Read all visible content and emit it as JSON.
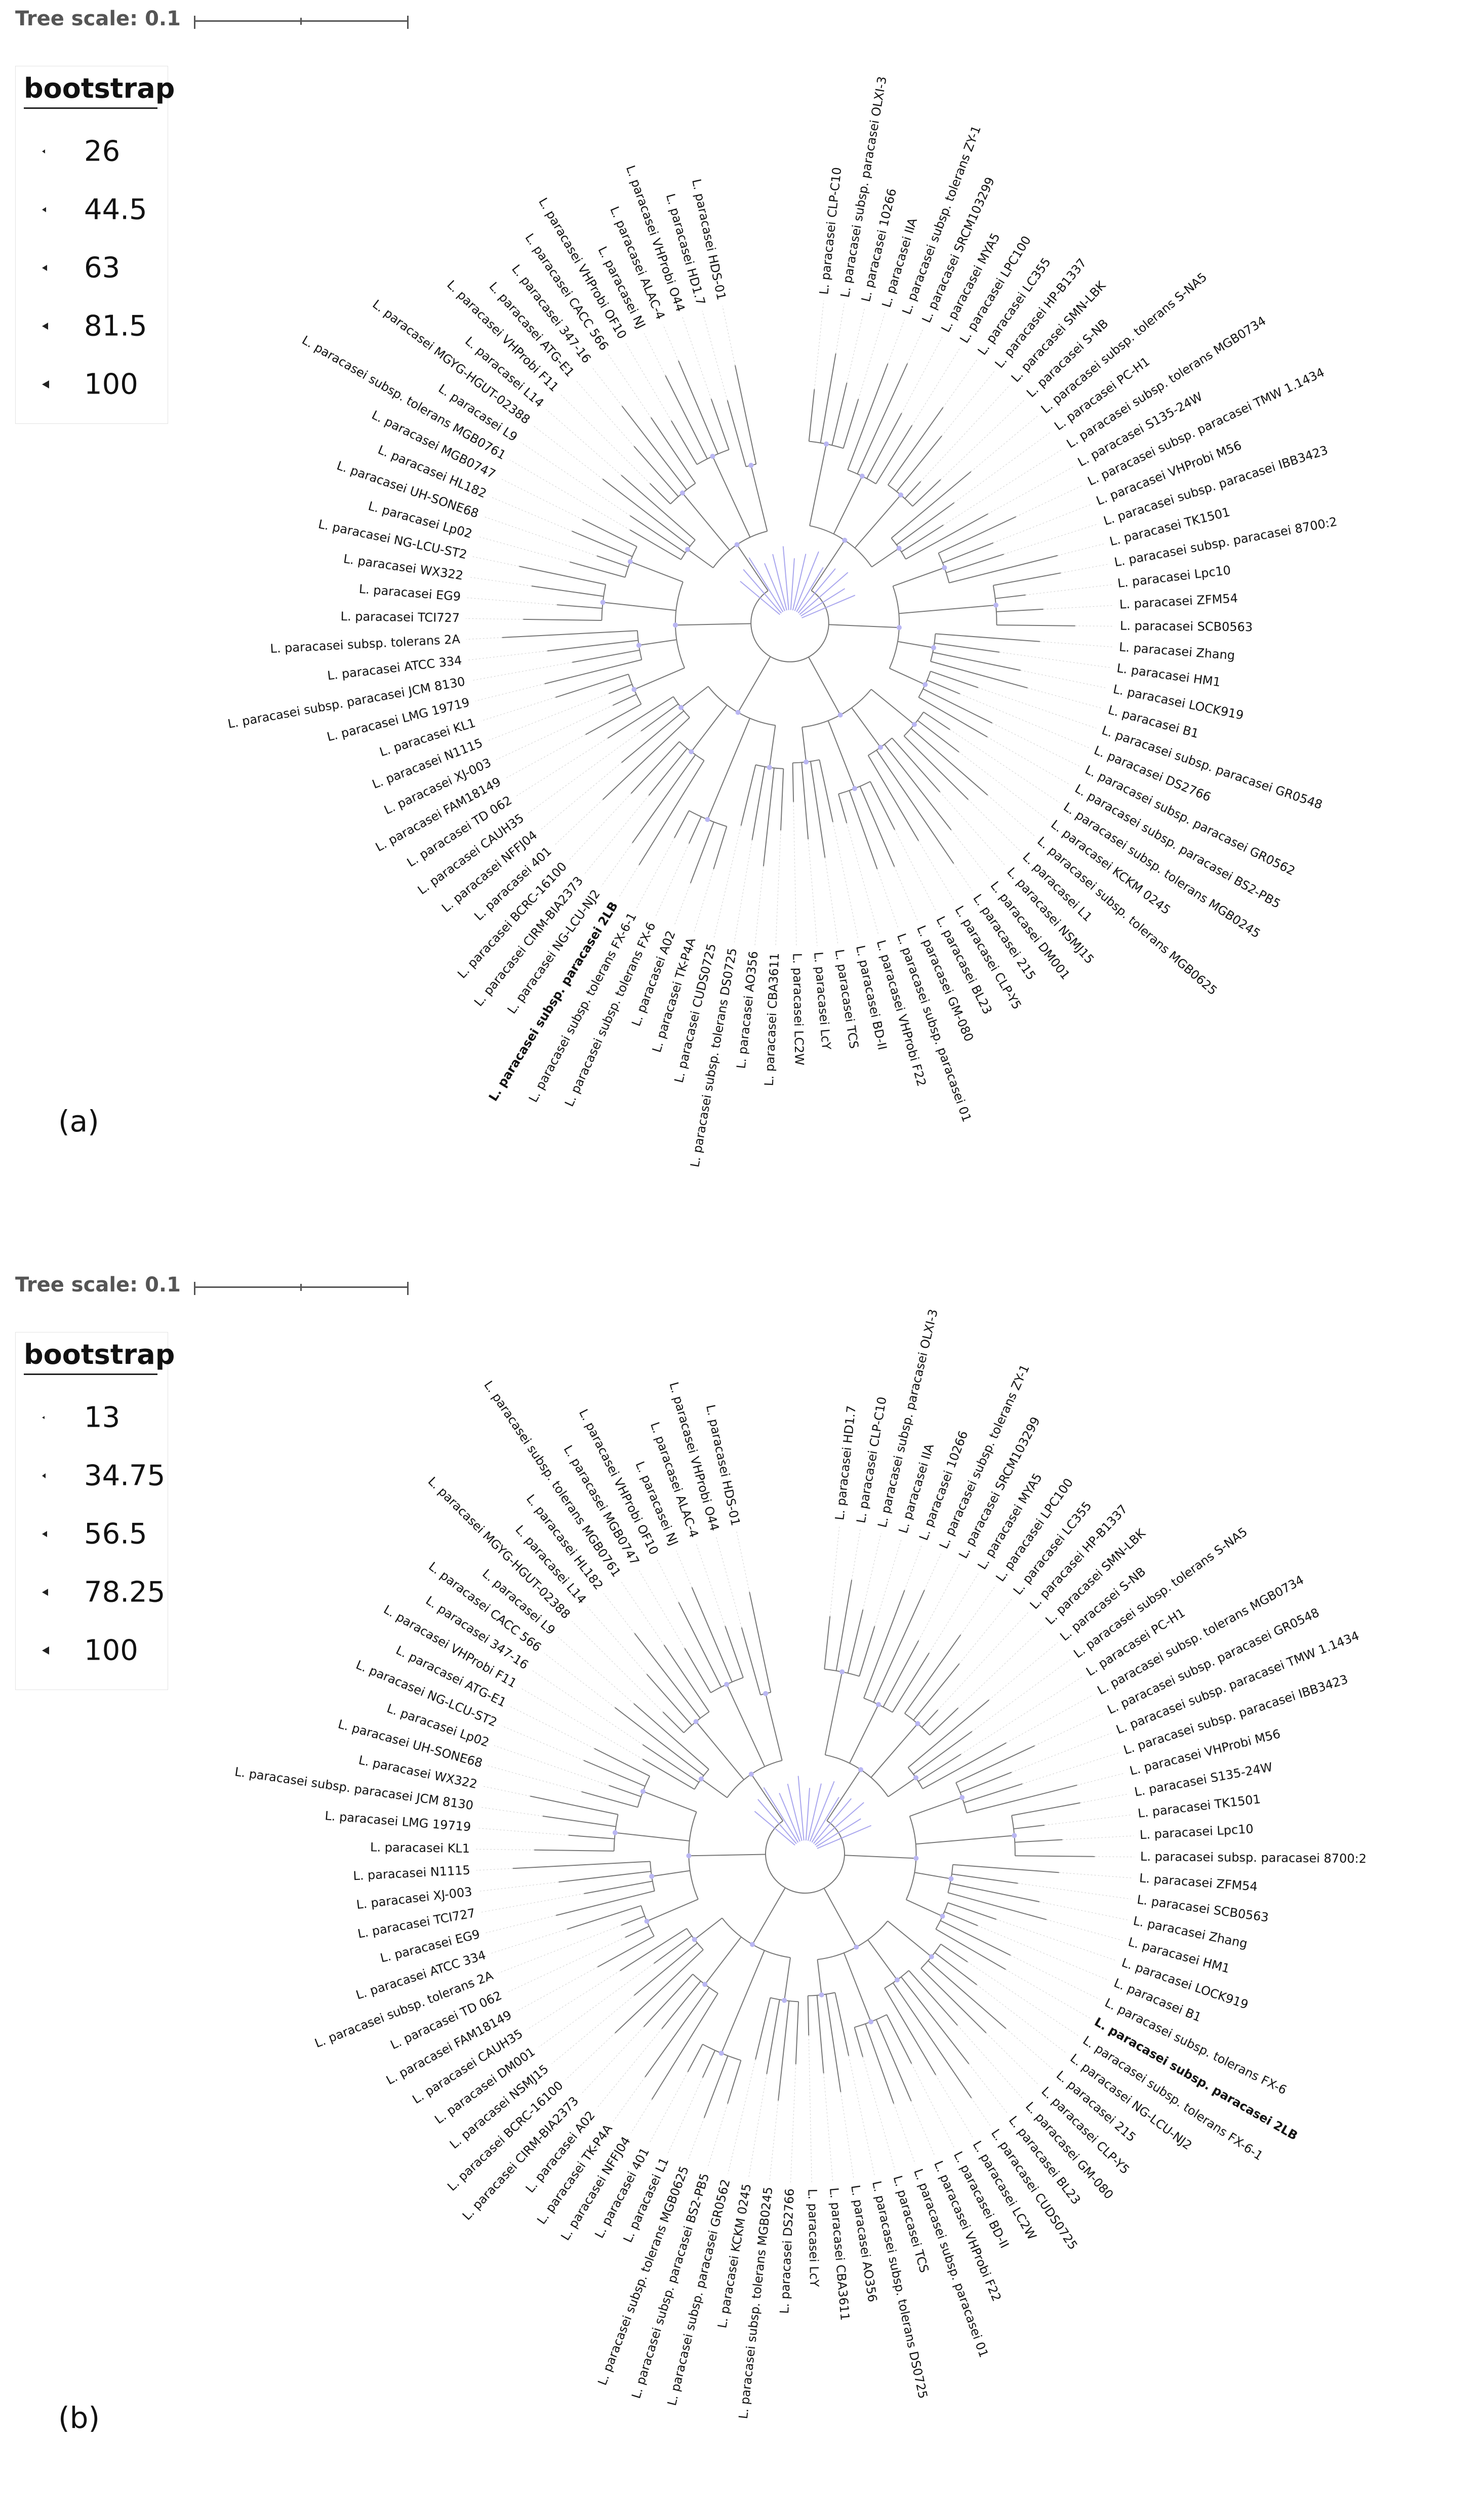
{
  "panels": [
    {
      "id": "a",
      "label": "(a)",
      "scale_label": "Tree scale: 0.1",
      "legend_title": "bootstrap",
      "legend_values": [
        "26",
        "44.5",
        "63",
        "81.5",
        "100"
      ],
      "highlight": "L. paracasei subsp. paracasei 2LB",
      "taxa": [
        "L. paracasei CLP-C10",
        "L. paracasei subsp. paracasei OLXI-3",
        "L. paracasei 10266",
        "L. paracasei IIA",
        "L. paracasei subsp. tolerans ZY-1",
        "L. paracasei SRCM103299",
        "L. paracasei MYA5",
        "L. paracasei LPC100",
        "L. paracasei LC355",
        "L. paracasei HP-B1337",
        "L. paracasei SMN-LBK",
        "L. paracasei S-NB",
        "L. paracasei subsp. tolerans S-NA5",
        "L. paracasei PC-H1",
        "L. paracasei subsp. tolerans MGB0734",
        "L. paracasei S135-24W",
        "L. paracasei subsp. paracasei TMW 1.1434",
        "L. paracasei VHProbi M56",
        "L. paracasei subsp. paracasei IBB3423",
        "L. paracasei TK1501",
        "L. paracasei subsp. paracasei 8700:2",
        "L. paracasei Lpc10",
        "L. paracasei ZFM54",
        "L. paracasei SCB0563",
        "L. paracasei Zhang",
        "L. paracasei HM1",
        "L. paracasei LOCK919",
        "L. paracasei B1",
        "L. paracasei subsp. paracasei GR0548",
        "L. paracasei DS2766",
        "L. paracasei subsp. paracasei GR0562",
        "L. paracasei subsp. paracasei BS2-PB5",
        "L. paracasei subsp. tolerans MGB0245",
        "L. paracasei KCKM 0245",
        "L. paracasei subsp. tolerans MGB0625",
        "L. paracasei L1",
        "L. paracasei NSMJ15",
        "L. paracasei DM001",
        "L. paracasei 215",
        "L. paracasei CLP-Y5",
        "L. paracasei BL23",
        "L. paracasei GM-080",
        "L. paracasei subsp. paracasei 01",
        "L. paracasei VHProbi F22",
        "L. paracasei BD-II",
        "L. paracasei TCS",
        "L. paracasei LcY",
        "L. paracasei LC2W",
        "L. paracasei CBA3611",
        "L. paracasei AO356",
        "L. paracasei subsp. tolerans DS0725",
        "L. paracasei CUDS0725",
        "L. paracasei TK-P4A",
        "L. paracasei A02",
        "L. paracasei subsp. tolerans FX-6",
        "L. paracasei subsp. tolerans FX-6-1",
        "L. paracasei subsp. paracasei 2LB",
        "L. paracasei NG-LCU-NJ2",
        "L. paracasei CIRM-BIA2373",
        "L. paracasei BCRC-16100",
        "L. paracasei 401",
        "L. paracasei NFFJ04",
        "L. paracasei CAUH35",
        "L. paracasei TD 062",
        "L. paracasei FAM18149",
        "L. paracasei XJ-003",
        "L. paracasei N1115",
        "L. paracasei KL1",
        "L. paracasei LMG 19719",
        "L. paracasei subsp. paracasei JCM 8130",
        "L. paracasei ATCC 334",
        "L. paracasei subsp. tolerans 2A",
        "L. paracasei TCI727",
        "L. paracasei EG9",
        "L. paracasei WX322",
        "L. paracasei NG-LCU-ST2",
        "L. paracasei Lp02",
        "L. paracasei UH-SONE68",
        "L. paracasei HL182",
        "L. paracasei MGB0747",
        "L. paracasei subsp. tolerans MGB0761",
        "L. paracasei L9",
        "L. paracasei MGYG-HGUT-02388",
        "L. paracasei L14",
        "L. paracasei VHProbi F11",
        "L. paracasei ATG-E1",
        "L. paracasei 347-16",
        "L. paracasei CACC 566",
        "L. paracasei VHProbi OF10",
        "L. paracasei NJ",
        "L. paracasei ALAC-4",
        "L. paracasei VHProbi O44",
        "L. paracasei HD1.7",
        "L. paracasei HDS-01"
      ]
    },
    {
      "id": "b",
      "label": "(b)",
      "scale_label": "Tree scale: 0.1",
      "legend_title": "bootstrap",
      "legend_values": [
        "13",
        "34.75",
        "56.5",
        "78.25",
        "100"
      ],
      "highlight": "L. paracasei subsp. paracasei 2LB",
      "taxa": [
        "L. paracasei HD1.7",
        "L. paracasei CLP-C10",
        "L. paracasei subsp. paracasei OLXI-3",
        "L. paracasei IIA",
        "L. paracasei 10266",
        "L. paracasei subsp. tolerans ZY-1",
        "L. paracasei SRCM103299",
        "L. paracasei MYA5",
        "L. paracasei LPC100",
        "L. paracasei LC355",
        "L. paracasei HP-B1337",
        "L. paracasei SMN-LBK",
        "L. paracasei S-NB",
        "L. paracasei subsp. tolerans S-NA5",
        "L. paracasei PC-H1",
        "L. paracasei subsp. tolerans MGB0734",
        "L. paracasei subsp. paracasei GR0548",
        "L. paracasei subsp. paracasei TMW 1.1434",
        "L. paracasei subsp. paracasei IBB3423",
        "L. paracasei VHProbi M56",
        "L. paracasei S135-24W",
        "L. paracasei TK1501",
        "L. paracasei Lpc10",
        "L. paracasei subsp. paracasei 8700:2",
        "L. paracasei ZFM54",
        "L. paracasei SCB0563",
        "L. paracasei Zhang",
        "L. paracasei HM1",
        "L. paracasei LOCK919",
        "L. paracasei B1",
        "L. paracasei subsp. tolerans FX-6",
        "L. paracasei subsp. paracasei 2LB",
        "L. paracasei subsp. tolerans FX-6-1",
        "L. paracasei NG-LCU-NJ2",
        "L. paracasei 215",
        "L. paracasei CLP-Y5",
        "L. paracasei GM-080",
        "L. paracasei BL23",
        "L. paracasei CUDS0725",
        "L. paracasei LC2W",
        "L. paracasei BD-II",
        "L. paracasei VHProbi F22",
        "L. paracasei subsp. paracasei 01",
        "L. paracasei TCS",
        "L. paracasei subsp. tolerans DS0725",
        "L. paracasei AO356",
        "L. paracasei CBA3611",
        "L. paracasei LcY",
        "L. paracasei DS2766",
        "L. paracasei subsp. tolerans MGB0245",
        "L. paracasei KCKM 0245",
        "L. paracasei subsp. paracasei GR0562",
        "L. paracasei subsp. paracasei BS2-PB5",
        "L. paracasei subsp. tolerans MGB0625",
        "L. paracasei L1",
        "L. paracasei 401",
        "L. paracasei NFFJ04",
        "L. paracasei TK-P4A",
        "L. paracasei A02",
        "L. paracasei CIRM-BIA2373",
        "L. paracasei BCRC-16100",
        "L. paracasei NSMJ15",
        "L. paracasei DM001",
        "L. paracasei CAUH35",
        "L. paracasei FAM18149",
        "L. paracasei TD 062",
        "L. paracasei subsp. tolerans 2A",
        "L. paracasei ATCC 334",
        "L. paracasei EG9",
        "L. paracasei TCI727",
        "L. paracasei XJ-003",
        "L. paracasei N1115",
        "L. paracasei KL1",
        "L. paracasei LMG 19719",
        "L. paracasei subsp. paracasei JCM 8130",
        "L. paracasei WX322",
        "L. paracasei UH-SONE68",
        "L. paracasei Lp02",
        "L. paracasei NG-LCU-ST2",
        "L. paracasei ATG-E1",
        "L. paracasei VHProbi F11",
        "L. paracasei 347-16",
        "L. paracasei CACC 566",
        "L. paracasei L9",
        "L. paracasei MGYG-HGUT-02388",
        "L. paracasei L14",
        "L. paracasei HL182",
        "L. paracasei subsp. tolerans MGB0761",
        "L. paracasei MGB0747",
        "L. paracasei VHProbi OF10",
        "L. paracasei NJ",
        "L. paracasei ALAC-4",
        "L. paracasei VHProbi O44",
        "L. paracasei HDS-01"
      ]
    }
  ]
}
